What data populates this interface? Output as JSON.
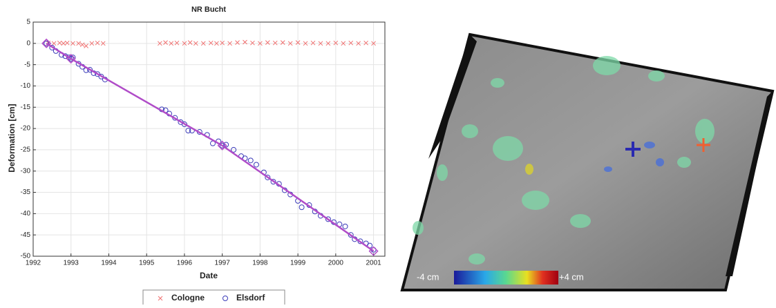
{
  "chart_data": {
    "type": "scatter",
    "title": "NR Bucht",
    "x_label": "Date",
    "y_label": "Deformation [cm]",
    "xlim": [
      1992,
      2001.3
    ],
    "xticks": [
      1992,
      1993,
      1994,
      1995,
      1996,
      1997,
      1998,
      1999,
      2000,
      2001
    ],
    "ylim": [
      -50,
      5
    ],
    "yticks": [
      5,
      0,
      -5,
      -10,
      -15,
      -20,
      -25,
      -30,
      -35,
      -40,
      -45,
      -50
    ],
    "grid": true,
    "legend": "bottom",
    "series": [
      {
        "name": "Cologne",
        "color": "#f07070",
        "marker": "x",
        "x": [
          1992.4,
          1992.55,
          1992.7,
          1992.8,
          1992.9,
          1993.05,
          1993.2,
          1993.3,
          1993.4,
          1993.55,
          1993.7,
          1993.85,
          1995.35,
          1995.5,
          1995.65,
          1995.8,
          1996.0,
          1996.15,
          1996.3,
          1996.5,
          1996.7,
          1996.85,
          1997.0,
          1997.2,
          1997.4,
          1997.6,
          1997.8,
          1998.0,
          1998.2,
          1998.4,
          1998.6,
          1998.8,
          1999.0,
          1999.2,
          1999.4,
          1999.6,
          1999.8,
          2000.0,
          2000.2,
          2000.4,
          2000.6,
          2000.8,
          2001.0
        ],
        "values": [
          0.1,
          0,
          0.1,
          0,
          0.1,
          0,
          0,
          -0.3,
          -0.6,
          0,
          0.1,
          0,
          0,
          0.2,
          0,
          0.1,
          0,
          0.2,
          0,
          0,
          0.1,
          0,
          0.1,
          0,
          0.2,
          0.3,
          0.1,
          0,
          0.2,
          0.1,
          0.2,
          0,
          0.2,
          0,
          0.1,
          0,
          0,
          0.1,
          0,
          0.1,
          0,
          0.1,
          0
        ]
      },
      {
        "name": "Elsdorf",
        "color": "#3a3ab8",
        "marker": "o",
        "x": [
          1992.35,
          1992.5,
          1992.6,
          1992.75,
          1992.85,
          1992.95,
          1993.0,
          1993.05,
          1993.2,
          1993.3,
          1993.4,
          1993.5,
          1993.6,
          1993.7,
          1993.8,
          1993.9,
          1995.4,
          1995.5,
          1995.6,
          1995.75,
          1995.9,
          1996.0,
          1996.1,
          1996.2,
          1996.4,
          1996.6,
          1996.75,
          1996.9,
          1997.0,
          1997.1,
          1997.3,
          1997.5,
          1997.6,
          1997.75,
          1997.9,
          1998.1,
          1998.2,
          1998.35,
          1998.5,
          1998.65,
          1998.8,
          1999.0,
          1999.1,
          1999.3,
          1999.45,
          1999.6,
          1999.8,
          1999.95,
          2000.1,
          2000.25,
          2000.4,
          2000.5,
          2000.65,
          2000.8,
          2000.9,
          2001.0
        ],
        "values": [
          0,
          -1,
          -1.8,
          -2.7,
          -3,
          -3.3,
          -3.6,
          -3.3,
          -4.8,
          -5.5,
          -6.3,
          -6.2,
          -7,
          -7.2,
          -7.8,
          -8.5,
          -15.5,
          -15.7,
          -16.5,
          -17.5,
          -18.5,
          -19,
          -20.5,
          -20.5,
          -20.8,
          -21.5,
          -23.5,
          -23,
          -24,
          -23.8,
          -25,
          -26.5,
          -27,
          -27.5,
          -28.5,
          -30.3,
          -31.5,
          -32.5,
          -33,
          -34.5,
          -35.5,
          -37,
          -38.5,
          -38,
          -39.5,
          -40.5,
          -41.3,
          -42,
          -42.5,
          -43,
          -45,
          -46,
          -46.5,
          -47,
          -47.5,
          -48.5
        ]
      },
      {
        "color": "#b04cc8",
        "marker": "diamond",
        "line": true,
        "x": [
          1992.35,
          1993,
          1997,
          2001
        ],
        "values": [
          0,
          -3.6,
          -24,
          -48.8
        ]
      }
    ]
  },
  "map": {
    "colorbar_min_label": "-4 cm",
    "colorbar_max_label": "+4 cm"
  }
}
